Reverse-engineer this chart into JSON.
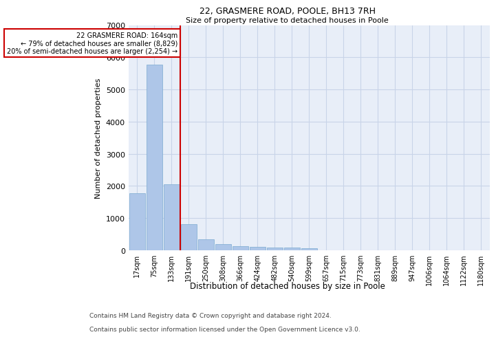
{
  "title_line1": "22, GRASMERE ROAD, POOLE, BH13 7RH",
  "title_line2": "Size of property relative to detached houses in Poole",
  "xlabel": "Distribution of detached houses by size in Poole",
  "ylabel": "Number of detached properties",
  "categories": [
    "17sqm",
    "75sqm",
    "133sqm",
    "191sqm",
    "250sqm",
    "308sqm",
    "366sqm",
    "424sqm",
    "482sqm",
    "540sqm",
    "599sqm",
    "657sqm",
    "715sqm",
    "773sqm",
    "831sqm",
    "889sqm",
    "947sqm",
    "1006sqm",
    "1064sqm",
    "1122sqm",
    "1180sqm"
  ],
  "values": [
    1780,
    5780,
    2060,
    820,
    340,
    195,
    120,
    110,
    95,
    80,
    60,
    0,
    0,
    0,
    0,
    0,
    0,
    0,
    0,
    0,
    0
  ],
  "bar_color": "#aec6e8",
  "bar_edge_color": "#7aaad0",
  "grid_color": "#c8d4e8",
  "background_color": "#e8eef8",
  "annotation_line1": "22 GRASMERE ROAD: 164sqm",
  "annotation_line2": "← 79% of detached houses are smaller (8,829)",
  "annotation_line3": "20% of semi-detached houses are larger (2,254) →",
  "vline_x_index": 2.5,
  "ylim": [
    0,
    7000
  ],
  "yticks": [
    0,
    1000,
    2000,
    3000,
    4000,
    5000,
    6000,
    7000
  ],
  "footnote1": "Contains HM Land Registry data © Crown copyright and database right 2024.",
  "footnote2": "Contains public sector information licensed under the Open Government Licence v3.0.",
  "annotation_box_color": "#cc0000",
  "vline_color": "#cc0000"
}
